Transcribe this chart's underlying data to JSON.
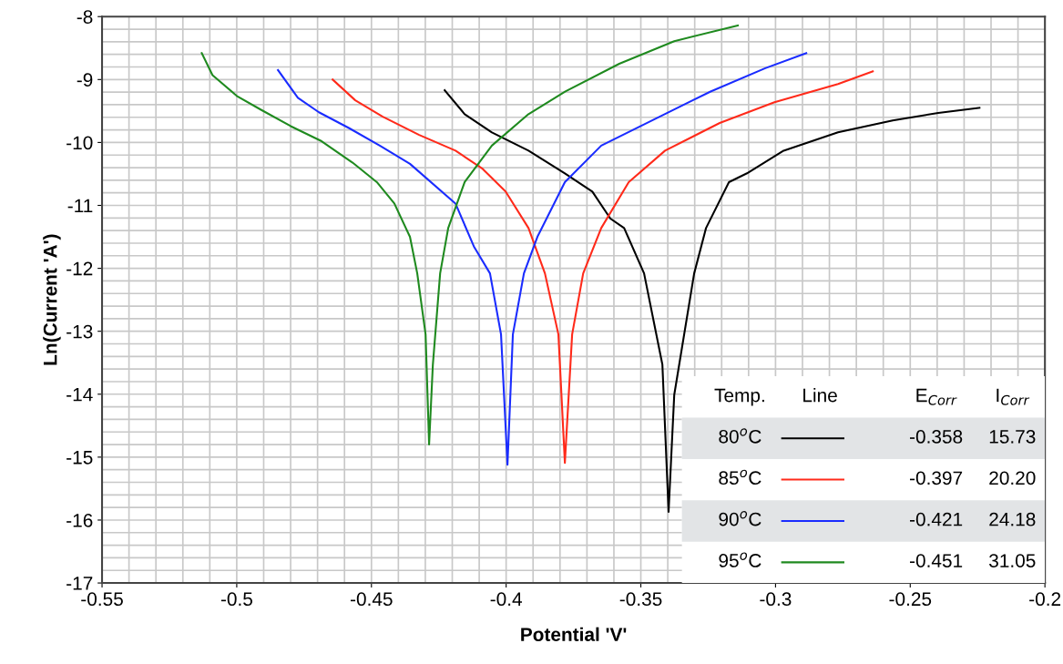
{
  "chart_data": {
    "type": "line",
    "xlabel": "Potential 'V'",
    "ylabel": "Ln(Current 'A')",
    "xlim": [
      -0.55,
      -0.2
    ],
    "xticks": [
      -0.55,
      -0.5,
      -0.45,
      -0.4,
      -0.35,
      -0.3,
      -0.25,
      -0.2
    ],
    "ylim": [
      -17,
      -8
    ],
    "yticks": [
      -17,
      -16,
      -15,
      -14,
      -13,
      -12,
      -11,
      -10,
      -9,
      -8
    ],
    "grid": true,
    "legend": "bottom right",
    "marker": "none",
    "line_style": "solid",
    "annotations": [
      "Temp.",
      "Line",
      "E$_{Corr}$",
      "I$_{Corr}$",
      "-0.358",
      "15.73",
      "-0.397",
      "20.20",
      "-0.421",
      "24.18",
      "-0.451",
      "31.05"
    ],
    "series": [
      {
        "name": "80$^{o}$C",
        "color": "#000000",
        "x": [
          -0.4228,
          -0.4154,
          -0.4053,
          -0.3917,
          -0.3782,
          -0.368,
          -0.3613,
          -0.3562,
          -0.3488,
          -0.342,
          -0.3397,
          -0.3376,
          -0.3302,
          -0.3258,
          -0.3173,
          -0.3106,
          -0.297,
          -0.2768,
          -0.2565,
          -0.2396,
          -0.2243
        ],
        "values": [
          -9.17,
          -9.55,
          -9.84,
          -10.13,
          -10.49,
          -10.78,
          -11.21,
          -11.36,
          -12.08,
          -13.53,
          -15.87,
          -14.01,
          -12.08,
          -11.36,
          -10.63,
          -10.49,
          -10.13,
          -9.84,
          -9.65,
          -9.53,
          -9.45
        ]
      },
      {
        "name": "85$^{o}$C",
        "color": "#ff2a1a",
        "x": [
          -0.4644,
          -0.456,
          -0.4458,
          -0.4323,
          -0.4188,
          -0.4087,
          -0.4002,
          -0.3917,
          -0.3856,
          -0.3806,
          -0.3782,
          -0.3755,
          -0.3714,
          -0.3647,
          -0.3545,
          -0.341,
          -0.3207,
          -0.3004,
          -0.2768,
          -0.2639
        ],
        "values": [
          -9.0,
          -9.33,
          -9.59,
          -9.88,
          -10.13,
          -10.42,
          -10.78,
          -11.36,
          -12.08,
          -13.05,
          -15.09,
          -13.05,
          -12.08,
          -11.36,
          -10.63,
          -10.13,
          -9.69,
          -9.36,
          -9.07,
          -8.87
        ]
      },
      {
        "name": "90$^{o}$C",
        "color": "#1a2cff",
        "x": [
          -0.4847,
          -0.4773,
          -0.4695,
          -0.4584,
          -0.4469,
          -0.4357,
          -0.4188,
          -0.412,
          -0.406,
          -0.4019,
          -0.3995,
          -0.3975,
          -0.3934,
          -0.3884,
          -0.3782,
          -0.3647,
          -0.3444,
          -0.3241,
          -0.3038,
          -0.2886
        ],
        "values": [
          -8.85,
          -9.29,
          -9.52,
          -9.77,
          -10.05,
          -10.34,
          -10.97,
          -11.65,
          -12.08,
          -13.05,
          -15.12,
          -13.05,
          -12.08,
          -11.5,
          -10.63,
          -10.05,
          -9.62,
          -9.19,
          -8.82,
          -8.58
        ]
      },
      {
        "name": "95$^{o}$C",
        "color": "#1f8a1f",
        "x": [
          -0.513,
          -0.509,
          -0.5,
          -0.491,
          -0.48,
          -0.4685,
          -0.457,
          -0.448,
          -0.4415,
          -0.4357,
          -0.433,
          -0.4299,
          -0.4286,
          -0.4272,
          -0.4245,
          -0.4215,
          -0.4154,
          -0.4053,
          -0.3917,
          -0.378,
          -0.358,
          -0.3376,
          -0.314
        ],
        "values": [
          -8.58,
          -8.93,
          -9.26,
          -9.48,
          -9.74,
          -9.98,
          -10.32,
          -10.63,
          -10.97,
          -11.5,
          -12.08,
          -13.05,
          -14.8,
          -13.53,
          -12.08,
          -11.36,
          -10.63,
          -10.05,
          -9.55,
          -9.19,
          -8.75,
          -8.39,
          -8.14
        ]
      }
    ]
  }
}
